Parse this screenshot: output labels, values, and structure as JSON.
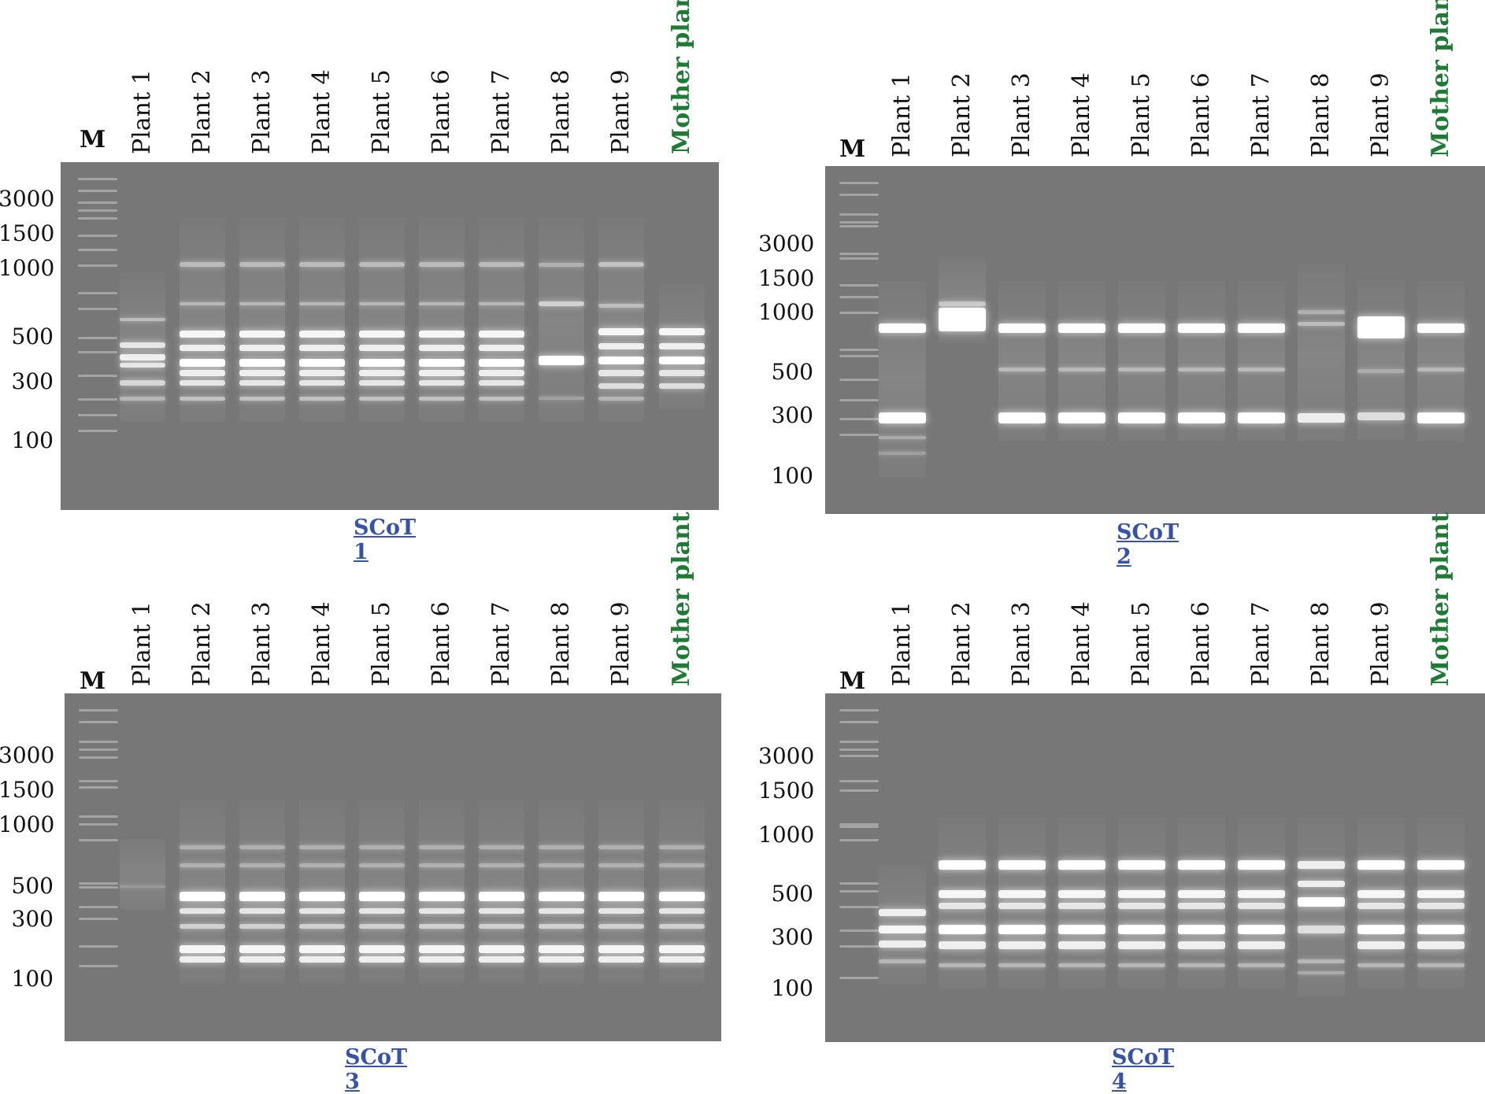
{
  "lanes": [
    "M",
    "Plant 1",
    "Plant 2",
    "Plant 3",
    "Plant 4",
    "Plant 5",
    "Plant 6",
    "Plant 7",
    "Plant 8",
    "Plant 9",
    "Mother plant"
  ],
  "panels": [
    {
      "caption": "SCoT 1",
      "ladder_sizes": [
        "3000",
        "1500",
        "1000",
        "500",
        "300",
        "100"
      ]
    },
    {
      "caption": "SCoT 2",
      "ladder_sizes": [
        "3000",
        "1500",
        "1000",
        "500",
        "300",
        "100"
      ]
    },
    {
      "caption": "SCoT 3",
      "ladder_sizes": [
        "3000",
        "1500",
        "1000",
        "500",
        "300",
        "100"
      ]
    },
    {
      "caption": "SCoT 4",
      "ladder_sizes": [
        "3000",
        "1500",
        "1000",
        "500",
        "300",
        "100"
      ]
    }
  ],
  "colors": {
    "gel_background": "#777777",
    "mother_label": "#1e7b34",
    "caption": "#3753a6"
  }
}
